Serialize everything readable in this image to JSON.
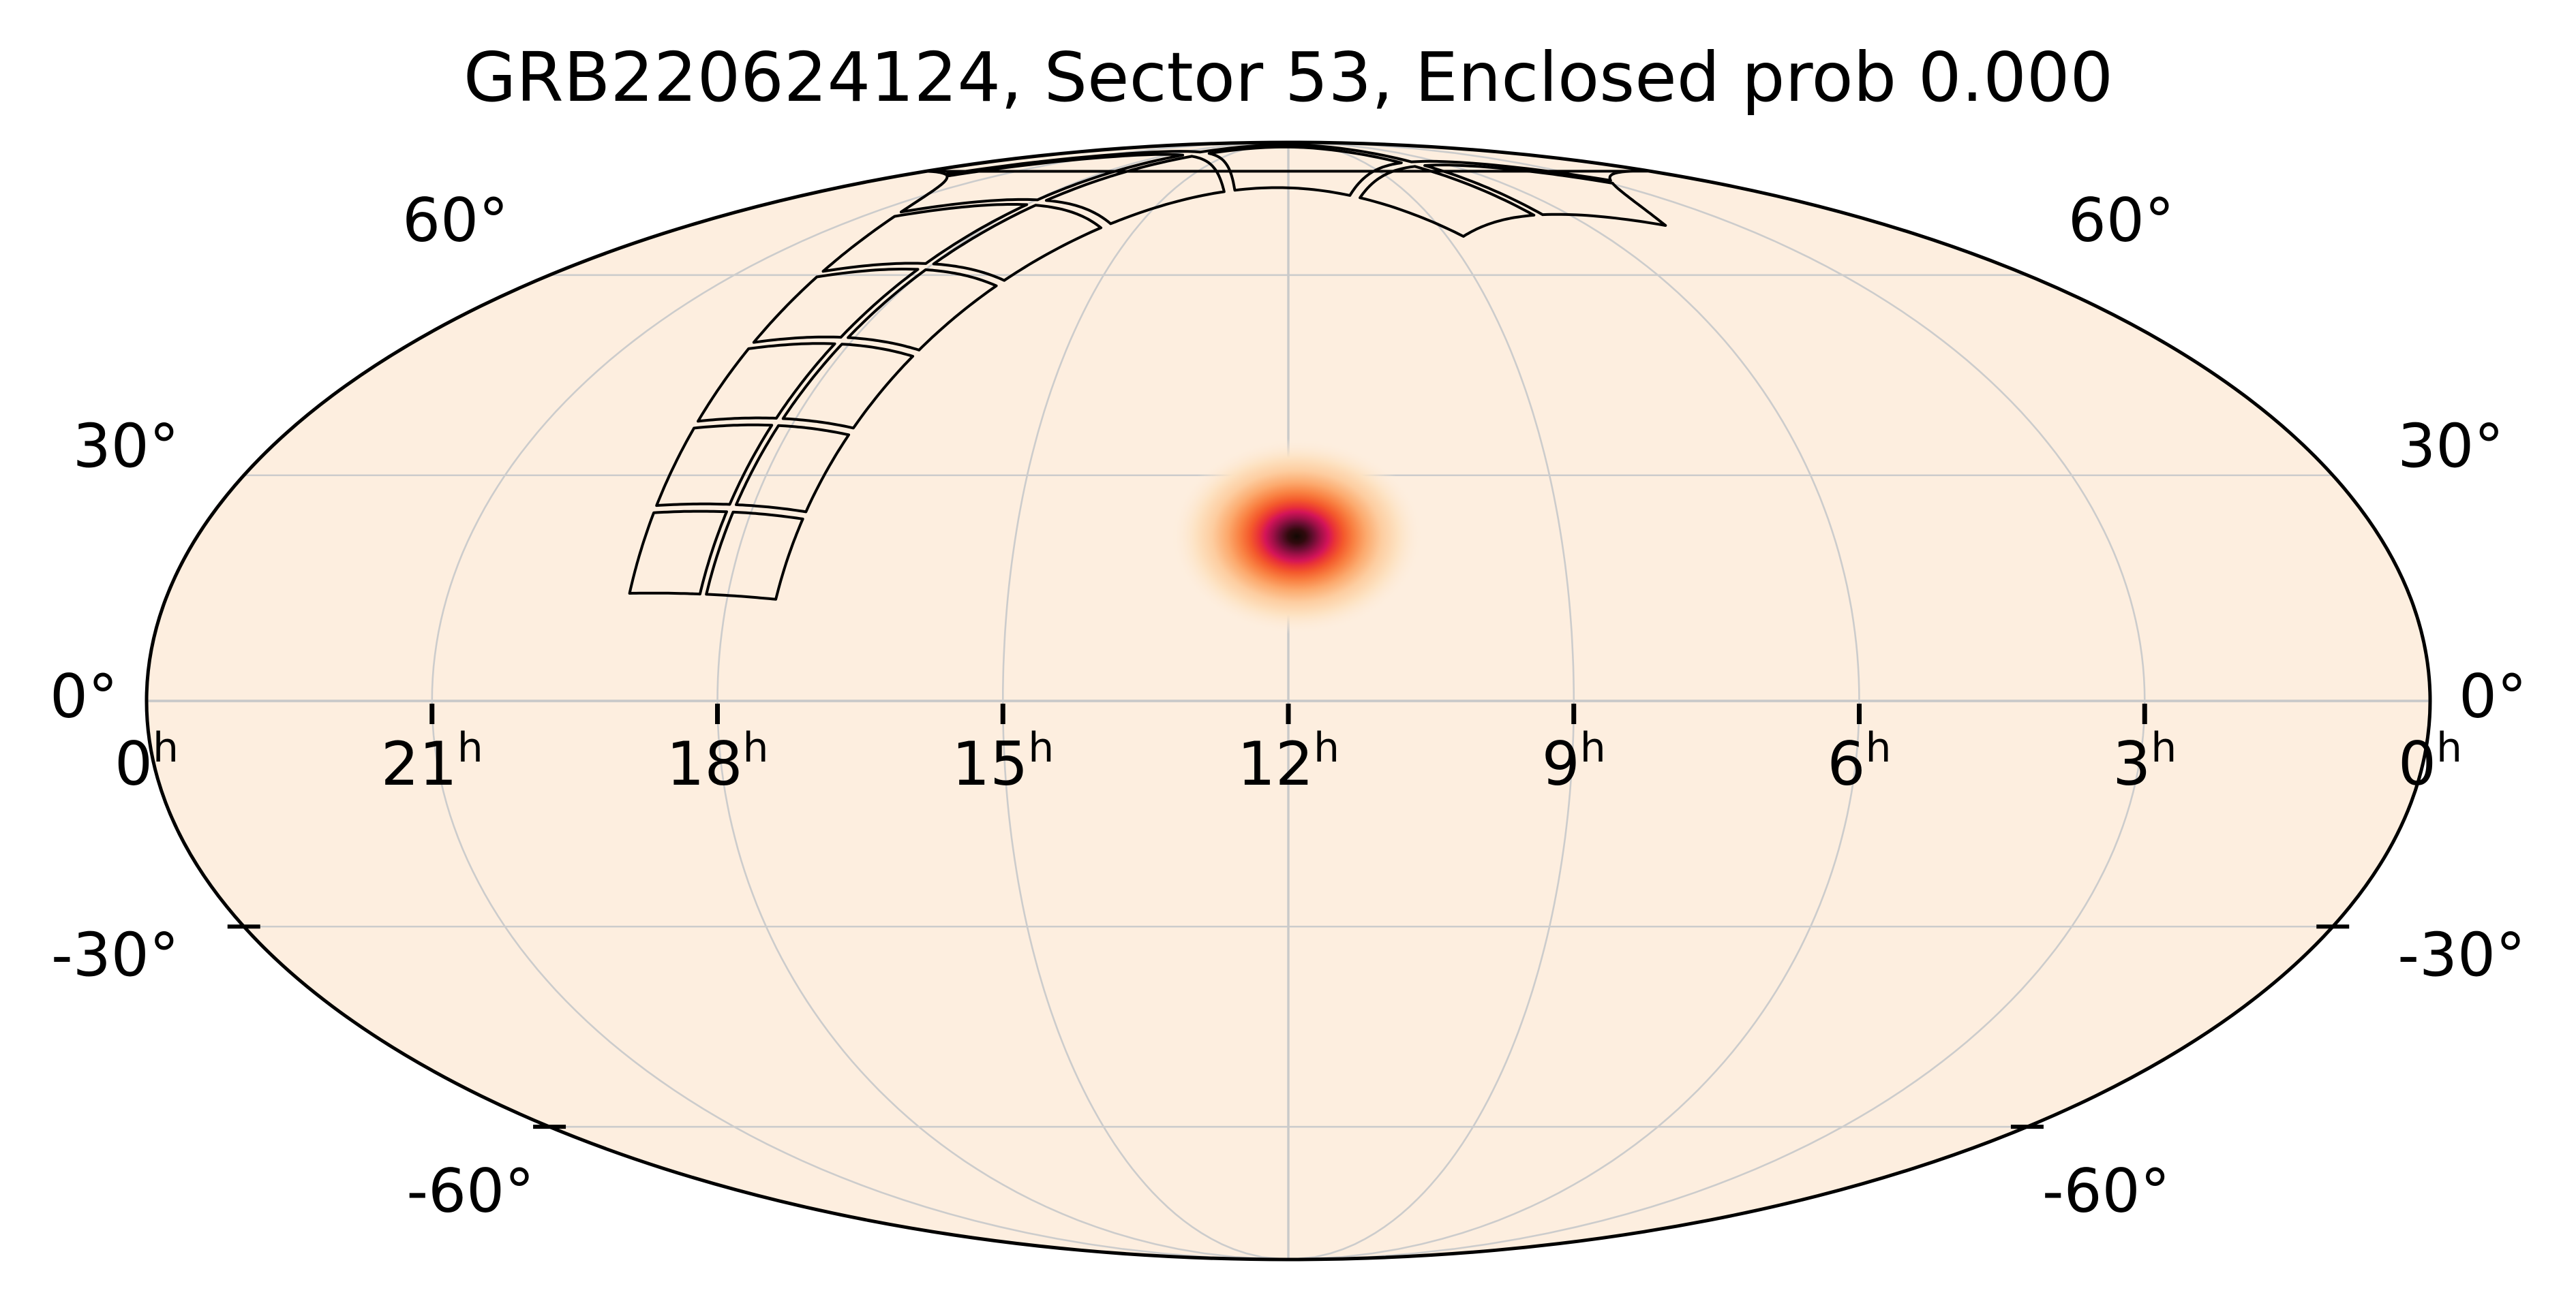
{
  "title": "GRB220624124, Sector 53, Enclosed prob 0.000",
  "grb_name": "GRB220624124",
  "sector": "53",
  "enclosed_prob": "0.000",
  "colors": {
    "figure_background": "#ffffff",
    "map_fill": "#fdeedf",
    "map_outline": "#000000",
    "grid": "#cccccc",
    "grid_strong": "#c9c9c9",
    "footprint_stroke": "#000000",
    "tick_color": "#000000",
    "blob_stops": [
      [
        0.0,
        "#120903"
      ],
      [
        0.07,
        "#300a0e"
      ],
      [
        0.13,
        "#650e30"
      ],
      [
        0.19,
        "#a11048"
      ],
      [
        0.25,
        "#d41458"
      ],
      [
        0.3,
        "#e93137"
      ],
      [
        0.37,
        "#f45a2c"
      ],
      [
        0.45,
        "#f98142"
      ],
      [
        0.55,
        "#fcaa6e"
      ],
      [
        0.67,
        "#fdcda0"
      ],
      [
        0.8,
        "#fde2c2"
      ],
      [
        1.0,
        "rgba(253,238,223,0)"
      ]
    ]
  },
  "graticule": {
    "parallels_deg": [
      -60,
      -30,
      0,
      30,
      60
    ],
    "meridians_hours": [
      21,
      18,
      15,
      12,
      9,
      6,
      3
    ]
  },
  "dec_axis": {
    "labels": [
      {
        "text": "60°",
        "deg": 60
      },
      {
        "text": "30°",
        "deg": 30
      },
      {
        "text": "0°",
        "deg": 0
      },
      {
        "text": "-30°",
        "deg": -30
      },
      {
        "text": "-60°",
        "deg": -60
      }
    ],
    "boundary_tick_degs": [
      -30,
      -60
    ]
  },
  "ra_axis": {
    "labels": [
      {
        "text": "0",
        "sup": "h",
        "hours": 24
      },
      {
        "text": "21",
        "sup": "h",
        "hours": 21
      },
      {
        "text": "18",
        "sup": "h",
        "hours": 18
      },
      {
        "text": "15",
        "sup": "h",
        "hours": 15
      },
      {
        "text": "12",
        "sup": "h",
        "hours": 12
      },
      {
        "text": "9",
        "sup": "h",
        "hours": 9
      },
      {
        "text": "6",
        "sup": "h",
        "hours": 6
      },
      {
        "text": "3",
        "sup": "h",
        "hours": 3
      },
      {
        "text": "0",
        "sup": "h",
        "hours": 0
      }
    ],
    "equator_tick_hours": [
      21,
      18,
      15,
      12,
      9,
      6,
      3
    ]
  },
  "localization": {
    "ra_deg": 178.6,
    "dec_deg": 21.7,
    "halo_rx_deg": 21,
    "halo_ry_deg": 17
  },
  "footprint": {
    "instrument": "TESS Sector 53 camera footprints",
    "cameras": 4,
    "ccd_blocks_per_camera": 4,
    "camera_size_deg": 24,
    "ccd_size_deg": 12,
    "ccd_edge_gap_deg": 0.5,
    "strip_base_ra_deg": 274.0,
    "strip_base_dec_deg": 13.5,
    "strip_toward_ra_deg": 270.0,
    "strip_toward_dec_deg": 66.56,
    "strip_length_deg": 96,
    "strip_half_width_deg": 12
  },
  "chart_data": {
    "type": "heatmap",
    "subtype": "all-sky localization map, Mollweide (astro hours) projection",
    "title": "GRB220624124, Sector 53, Enclosed prob 0.000",
    "projection_center_ra_hours": 12,
    "x_axis": {
      "label": "right ascension",
      "tick_labels": [
        "0h",
        "21h",
        "18h",
        "15h",
        "12h",
        "9h",
        "6h",
        "3h",
        "0h"
      ],
      "direction": "RA increases to the left"
    },
    "y_axis": {
      "label": "declination",
      "tick_labels": [
        "60°",
        "30°",
        "0°",
        "-30°",
        "-60°"
      ]
    },
    "grid": true,
    "probability_peak": {
      "ra_hours": 11.9,
      "dec_deg": 21.7
    },
    "enclosed_probability": 0.0,
    "overlay": "TESS Sector 53 four-camera strip (2x2 CCD outlines each) extending from (RA ~18.3h, Dec +14°) across the north celestial pole to (RA ~6.6h, Dec +70°)",
    "colormap": "cylon (cream to orange to red to black)"
  }
}
